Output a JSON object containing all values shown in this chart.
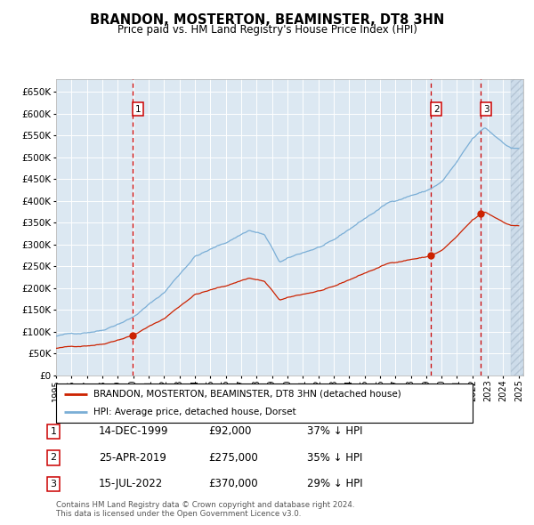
{
  "title": "BRANDON, MOSTERTON, BEAMINSTER, DT8 3HN",
  "subtitle": "Price paid vs. HM Land Registry's House Price Index (HPI)",
  "legend_line1": "BRANDON, MOSTERTON, BEAMINSTER, DT8 3HN (detached house)",
  "legend_line2": "HPI: Average price, detached house, Dorset",
  "sale_points": [
    {
      "label": "1",
      "date": "14-DEC-1999",
      "price": 92000,
      "pct": "37% ↓ HPI",
      "x_year": 1999.96
    },
    {
      "label": "2",
      "date": "25-APR-2019",
      "price": 275000,
      "pct": "35% ↓ HPI",
      "x_year": 2019.32
    },
    {
      "label": "3",
      "date": "15-JUL-2022",
      "price": 370000,
      "pct": "29% ↓ HPI",
      "x_year": 2022.54
    }
  ],
  "footnote1": "Contains HM Land Registry data © Crown copyright and database right 2024.",
  "footnote2": "This data is licensed under the Open Government Licence v3.0.",
  "ylim": [
    0,
    680000
  ],
  "xlim_start": 1995.0,
  "xlim_end": 2025.3,
  "hpi_color": "#7aaed6",
  "price_color": "#cc2200",
  "bg_color": "#dce8f2",
  "grid_color": "#ffffff",
  "vline_color": "#cc0000",
  "hatch_start": 2024.5,
  "hpi_knots_x": [
    1995.0,
    1996.5,
    1998.0,
    2000.0,
    2002.0,
    2004.0,
    2006.0,
    2007.5,
    2008.5,
    2009.5,
    2011.0,
    2013.0,
    2015.0,
    2016.5,
    2018.0,
    2019.0,
    2020.0,
    2021.0,
    2022.0,
    2022.8,
    2023.5,
    2024.5,
    2025.3
  ],
  "hpi_knots_y": [
    90000,
    97000,
    107000,
    140000,
    195000,
    280000,
    310000,
    340000,
    330000,
    265000,
    285000,
    310000,
    360000,
    395000,
    415000,
    425000,
    445000,
    490000,
    540000,
    565000,
    545000,
    520000,
    520000
  ]
}
